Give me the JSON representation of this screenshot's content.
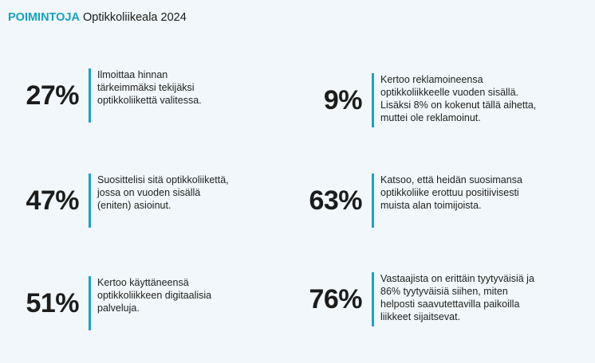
{
  "header": {
    "tag": "POIMINTOJA",
    "title": "Optikkoliikeala 2024"
  },
  "stats": [
    {
      "percent": "27%",
      "text": "Ilmoittaa hinnan\ntärkeimmäksi tekijäksi\noptikkoliikettä valitessa."
    },
    {
      "percent": "9%",
      "text": "Kertoo reklamoineensa\noptikkoliikkeelle vuoden sisällä.\nLisäksi 8% on kokenut tällä aihetta,\nmuttei ole reklamoinut."
    },
    {
      "percent": "47%",
      "text": "Suosittelisi sitä optikkoliikettä,\njossa on vuoden sisällä\n(eniten) asioinut."
    },
    {
      "percent": "63%",
      "text": "Katsoo, että heidän suosimansa\noptikkoliike erottuu positiivisesti\nmuista alan toimijoista."
    },
    {
      "percent": "51%",
      "text": "Kertoo käyttäneensä\noptikkoliikkeen digitaalisia\npalveluja."
    },
    {
      "percent": "76%",
      "text": "Vastaajista on erittäin tyytyväisiä ja\n86% tyytyväisiä siihen, miten\nhelposti saavutettavilla paikoilla\nliikkeet sijaitsevat."
    }
  ],
  "colors": {
    "accent": "#1aa3c2",
    "background": "#f1f7fa",
    "text": "#1c1c1c"
  }
}
